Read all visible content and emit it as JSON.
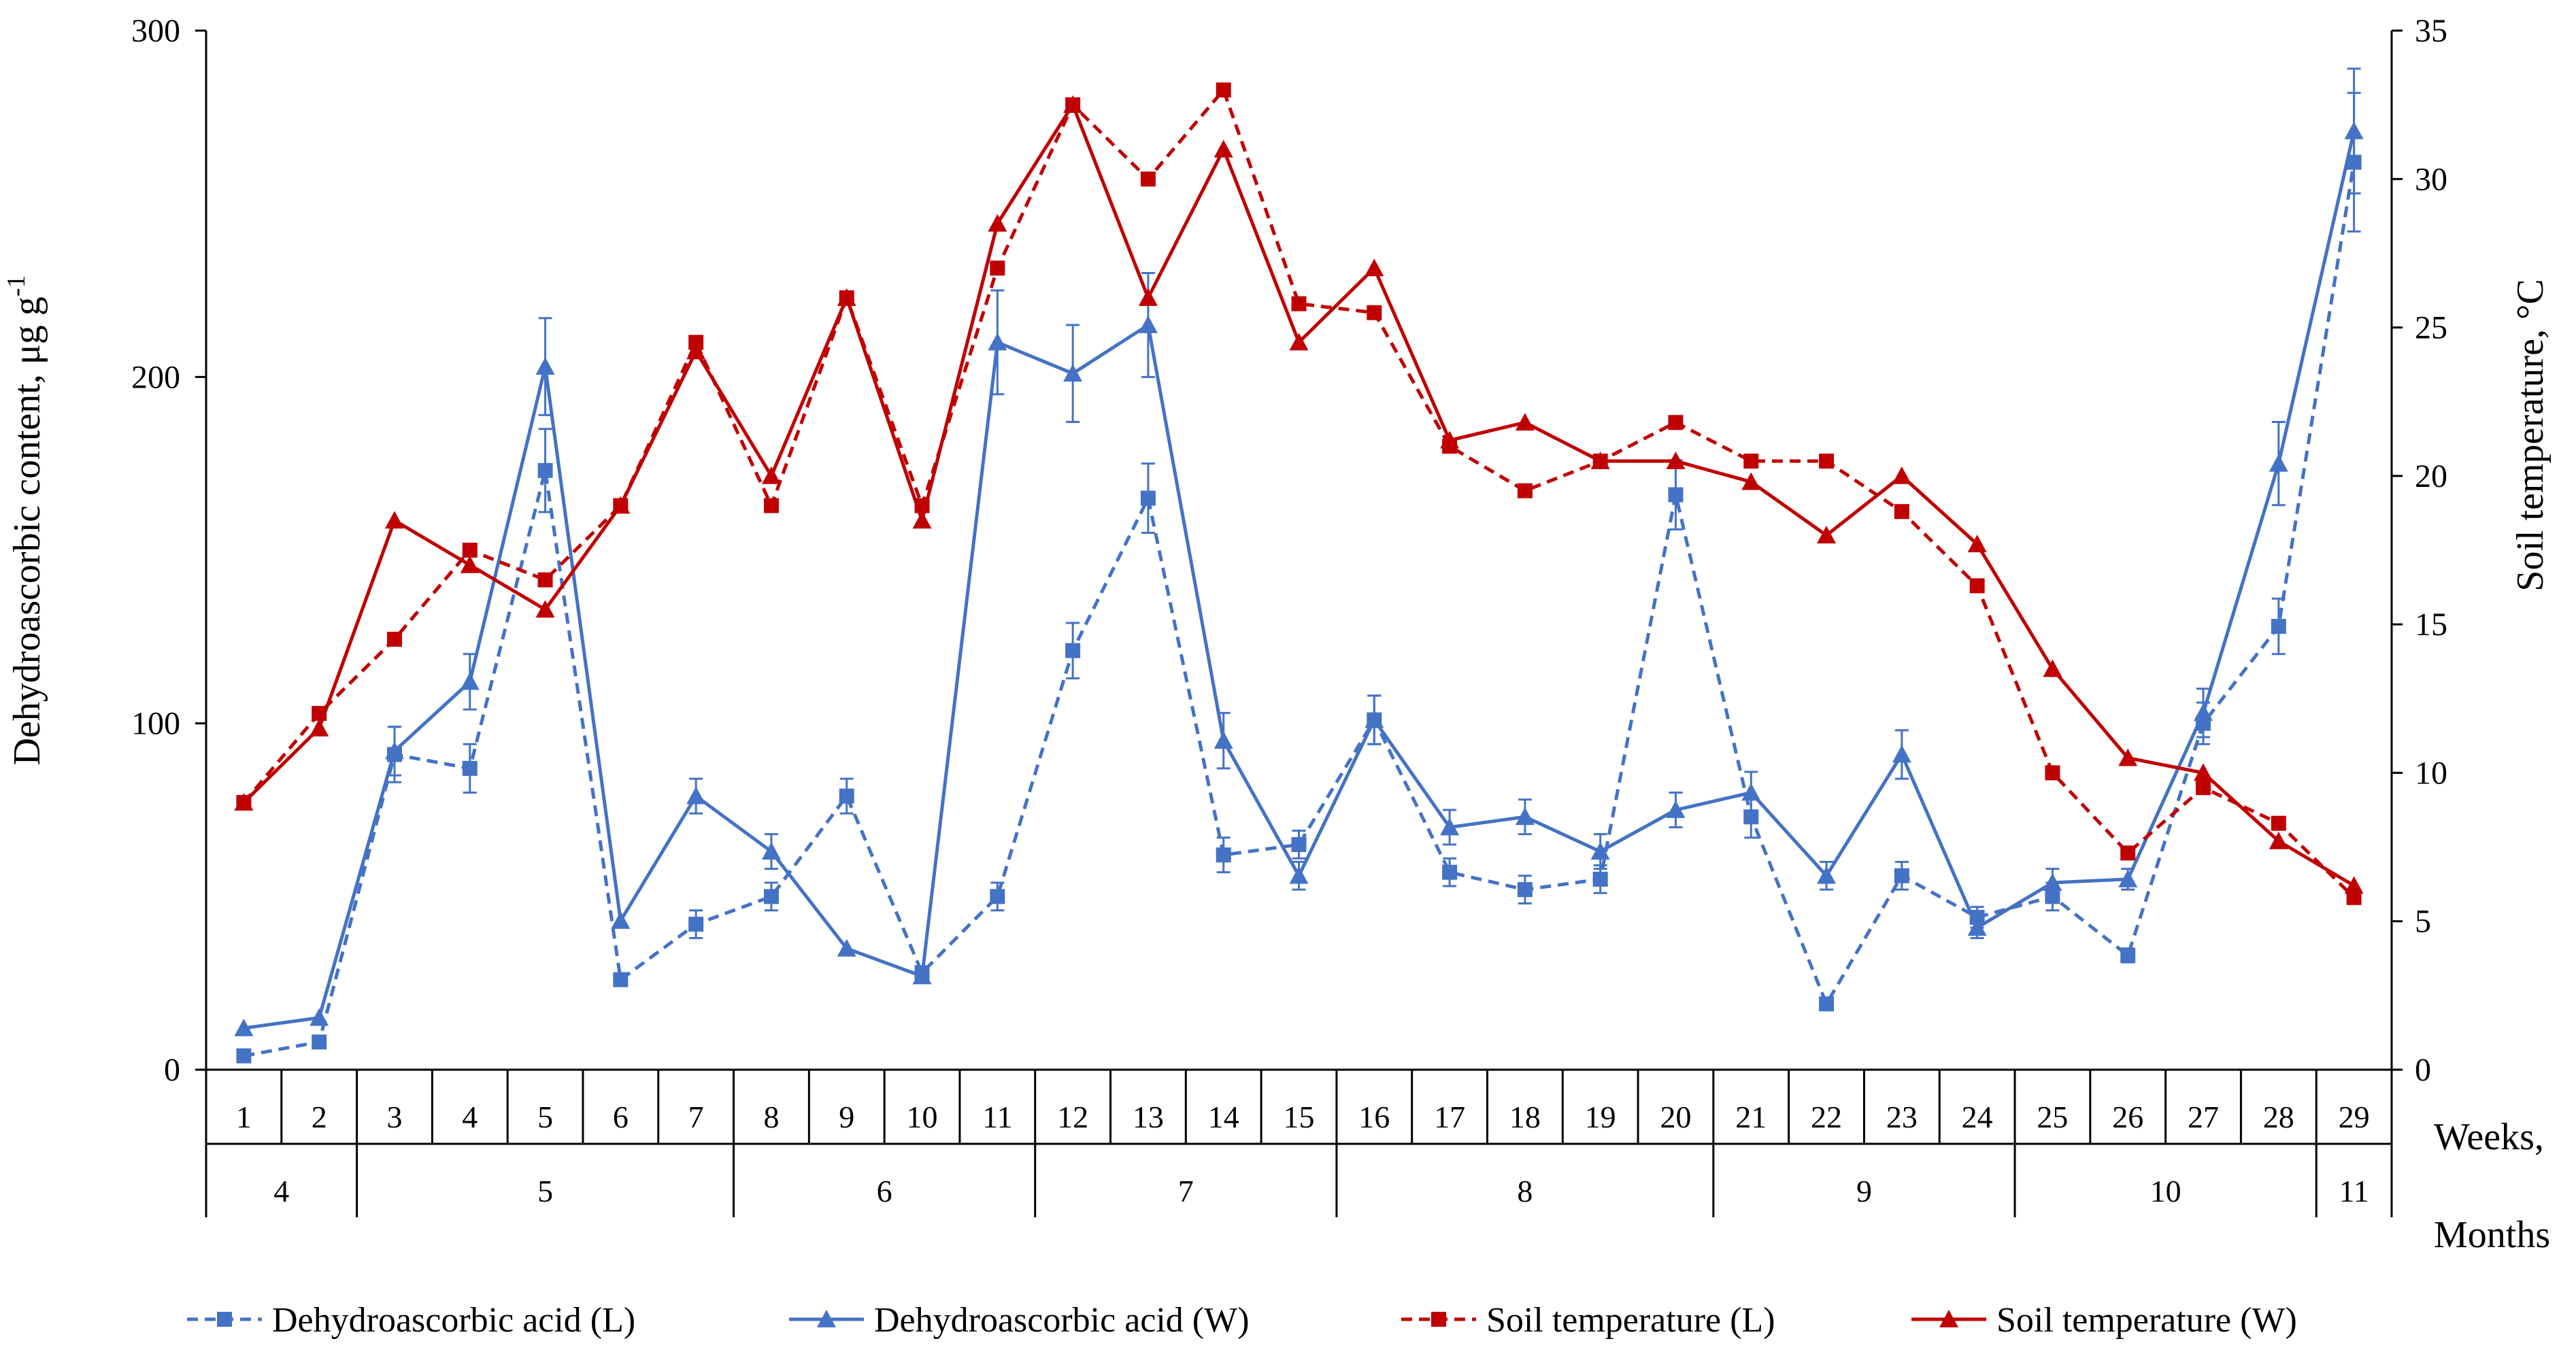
{
  "chart_data": {
    "type": "line",
    "x_label_weeks": "Weeks,",
    "x_label_months": "Months",
    "weeks": [
      "1",
      "2",
      "3",
      "4",
      "5",
      "6",
      "7",
      "8",
      "9",
      "10",
      "11",
      "12",
      "13",
      "14",
      "15",
      "16",
      "17",
      "18",
      "19",
      "20",
      "21",
      "22",
      "23",
      "24",
      "25",
      "26",
      "27",
      "28",
      "29"
    ],
    "months": [
      {
        "label": "4",
        "start_week": 1,
        "end_week": 2
      },
      {
        "label": "5",
        "start_week": 3,
        "end_week": 7
      },
      {
        "label": "6",
        "start_week": 8,
        "end_week": 11
      },
      {
        "label": "7",
        "start_week": 12,
        "end_week": 15
      },
      {
        "label": "8",
        "start_week": 16,
        "end_week": 20
      },
      {
        "label": "9",
        "start_week": 21,
        "end_week": 24
      },
      {
        "label": "10",
        "start_week": 25,
        "end_week": 28
      },
      {
        "label": "11",
        "start_week": 29,
        "end_week": 29
      }
    ],
    "y_left": {
      "label": "Dehydroascorbic content, μg g",
      "label_sup": "-1",
      "min": 0,
      "max": 300,
      "ticks": [
        "0",
        "100",
        "200",
        "300"
      ]
    },
    "y_right": {
      "label": "Soil temperature, °C",
      "min": 0,
      "max": 35,
      "ticks": [
        "0",
        "5",
        "10",
        "15",
        "20",
        "25",
        "30",
        "35"
      ]
    },
    "series": [
      {
        "name": "Dehydroascorbic acid (L)",
        "axis": "left",
        "color": "#4472C4",
        "dashed": true,
        "marker": "square",
        "values": [
          4,
          8,
          91,
          87,
          173,
          26,
          42,
          50,
          79,
          28,
          50,
          121,
          165,
          62,
          65,
          101,
          57,
          52,
          55,
          166,
          73,
          19,
          56,
          44,
          50,
          33,
          100,
          128,
          262
        ],
        "errors": [
          0,
          0,
          8,
          7,
          12,
          0,
          4,
          4,
          5,
          0,
          4,
          8,
          10,
          5,
          4,
          7,
          4,
          4,
          4,
          10,
          6,
          0,
          4,
          3,
          4,
          2,
          6,
          8,
          20
        ]
      },
      {
        "name": "Dehydroascorbic acid (W)",
        "axis": "left",
        "color": "#4472C4",
        "dashed": false,
        "marker": "triangle",
        "values": [
          12,
          15,
          92,
          112,
          203,
          43,
          79,
          63,
          35,
          27,
          210,
          201,
          215,
          95,
          56,
          101,
          70,
          73,
          63,
          75,
          80,
          56,
          91,
          41,
          54,
          55,
          103,
          175,
          271
        ],
        "errors": [
          0,
          0,
          7,
          8,
          14,
          0,
          5,
          5,
          0,
          0,
          15,
          14,
          15,
          8,
          4,
          7,
          5,
          5,
          5,
          5,
          6,
          4,
          7,
          3,
          4,
          3,
          7,
          12,
          18
        ]
      },
      {
        "name": "Soil temperature (L)",
        "axis": "right",
        "color": "#C00000",
        "dashed": true,
        "marker": "square",
        "values": [
          9,
          12,
          14.5,
          17.5,
          16.5,
          19,
          24.5,
          19,
          26,
          19,
          27,
          32.5,
          30,
          33,
          25.8,
          25.5,
          21,
          19.5,
          20.5,
          21.8,
          20.5,
          20.5,
          18.8,
          16.3,
          10,
          7.3,
          9.5,
          8.3,
          5.8
        ]
      },
      {
        "name": "Soil temperature (W)",
        "axis": "right",
        "color": "#C00000",
        "dashed": false,
        "marker": "triangle",
        "values": [
          9,
          11.5,
          18.5,
          17,
          15.5,
          19,
          24.2,
          20,
          26,
          18.5,
          28.5,
          32.5,
          26,
          31,
          24.5,
          27,
          21.2,
          21.8,
          20.5,
          20.5,
          19.8,
          18,
          20,
          17.7,
          13.5,
          10.5,
          10,
          7.7,
          6.2
        ]
      }
    ],
    "legend_position": "bottom"
  }
}
